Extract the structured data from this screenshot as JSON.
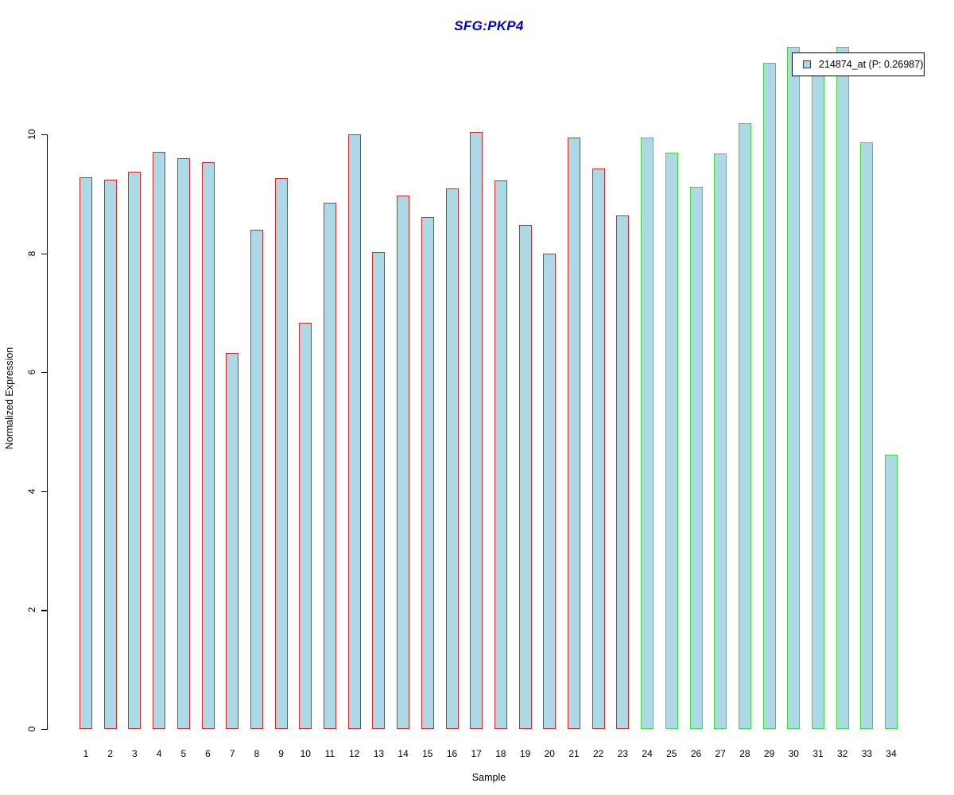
{
  "title": "SFG:PKP4",
  "title_color": "#0000CC",
  "legend": {
    "label": "214874_at (P: 0.26987)",
    "swatch_fill": "#ADD8E6",
    "swatch_border": "#3a3a3a"
  },
  "chart_data": {
    "type": "bar",
    "title": "SFG:PKP4",
    "xlabel": "Sample",
    "ylabel": "Normalized Expression",
    "ylim": [
      0,
      11.6
    ],
    "y_ticks": [
      0,
      2,
      4,
      6,
      8,
      10
    ],
    "grid": false,
    "legend_position": "top-right",
    "legend_entries": [
      "214874_at (P: 0.26987)"
    ],
    "bar_fill": "#ADD8E6",
    "categories": [
      "1",
      "2",
      "3",
      "4",
      "5",
      "6",
      "7",
      "8",
      "9",
      "10",
      "11",
      "12",
      "13",
      "14",
      "15",
      "16",
      "17",
      "18",
      "19",
      "20",
      "21",
      "22",
      "23",
      "24",
      "25",
      "26",
      "27",
      "28",
      "29",
      "30",
      "31",
      "32",
      "33",
      "34"
    ],
    "values": [
      9.28,
      9.24,
      9.37,
      9.71,
      9.6,
      9.53,
      6.33,
      8.4,
      9.27,
      6.83,
      8.85,
      10.0,
      8.02,
      8.97,
      8.61,
      9.09,
      10.04,
      9.23,
      8.48,
      7.99,
      9.95,
      9.43,
      8.64,
      9.95,
      9.69,
      9.12,
      9.68,
      10.19,
      11.2,
      11.47,
      11.0,
      11.47,
      9.87,
      4.61
    ],
    "groups": [
      {
        "name": "samples-1-23",
        "from": 1,
        "to": 23,
        "border_color": "#D02A2A"
      },
      {
        "name": "samples-24-34",
        "from": 24,
        "to": 34,
        "border_color": "#3ED83E"
      }
    ]
  }
}
